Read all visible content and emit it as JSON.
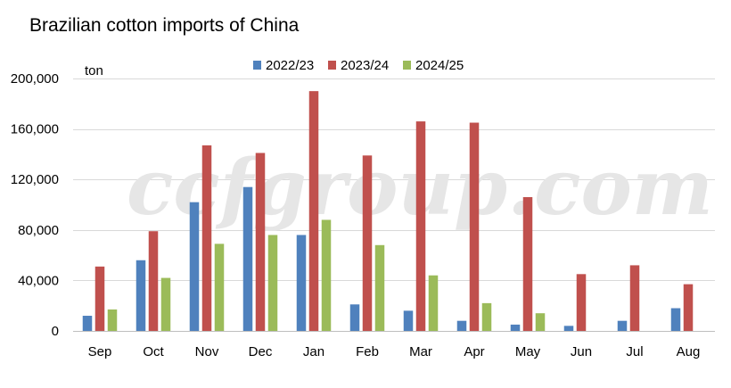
{
  "title": "Brazilian cotton imports of China",
  "watermark": "ccfgroup.com",
  "chart_data": {
    "type": "bar",
    "title": "Brazilian cotton imports of China",
    "ylabel": "ton",
    "xlabel": "",
    "ylim": [
      0,
      200000
    ],
    "yticks": [
      0,
      40000,
      80000,
      120000,
      160000,
      200000
    ],
    "ytick_labels": [
      "0",
      "40,000",
      "80,000",
      "120,000",
      "160,000",
      "200,000"
    ],
    "grid": true,
    "legend_position": "top",
    "categories": [
      "Sep",
      "Oct",
      "Nov",
      "Dec",
      "Jan",
      "Feb",
      "Mar",
      "Apr",
      "May",
      "Jun",
      "Jul",
      "Aug"
    ],
    "series": [
      {
        "name": "2022/23",
        "color": "#4f81bd",
        "values": [
          12000,
          56000,
          102000,
          114000,
          76000,
          21000,
          16000,
          8000,
          5000,
          4000,
          8000,
          18000
        ]
      },
      {
        "name": "2023/24",
        "color": "#c0504d",
        "values": [
          51000,
          79000,
          147000,
          141000,
          190000,
          139000,
          166000,
          165000,
          106000,
          45000,
          52000,
          37000
        ]
      },
      {
        "name": "2024/25",
        "color": "#9bbb59",
        "values": [
          17000,
          42000,
          69000,
          76000,
          88000,
          68000,
          44000,
          22000,
          14000,
          null,
          null,
          null
        ]
      }
    ]
  }
}
